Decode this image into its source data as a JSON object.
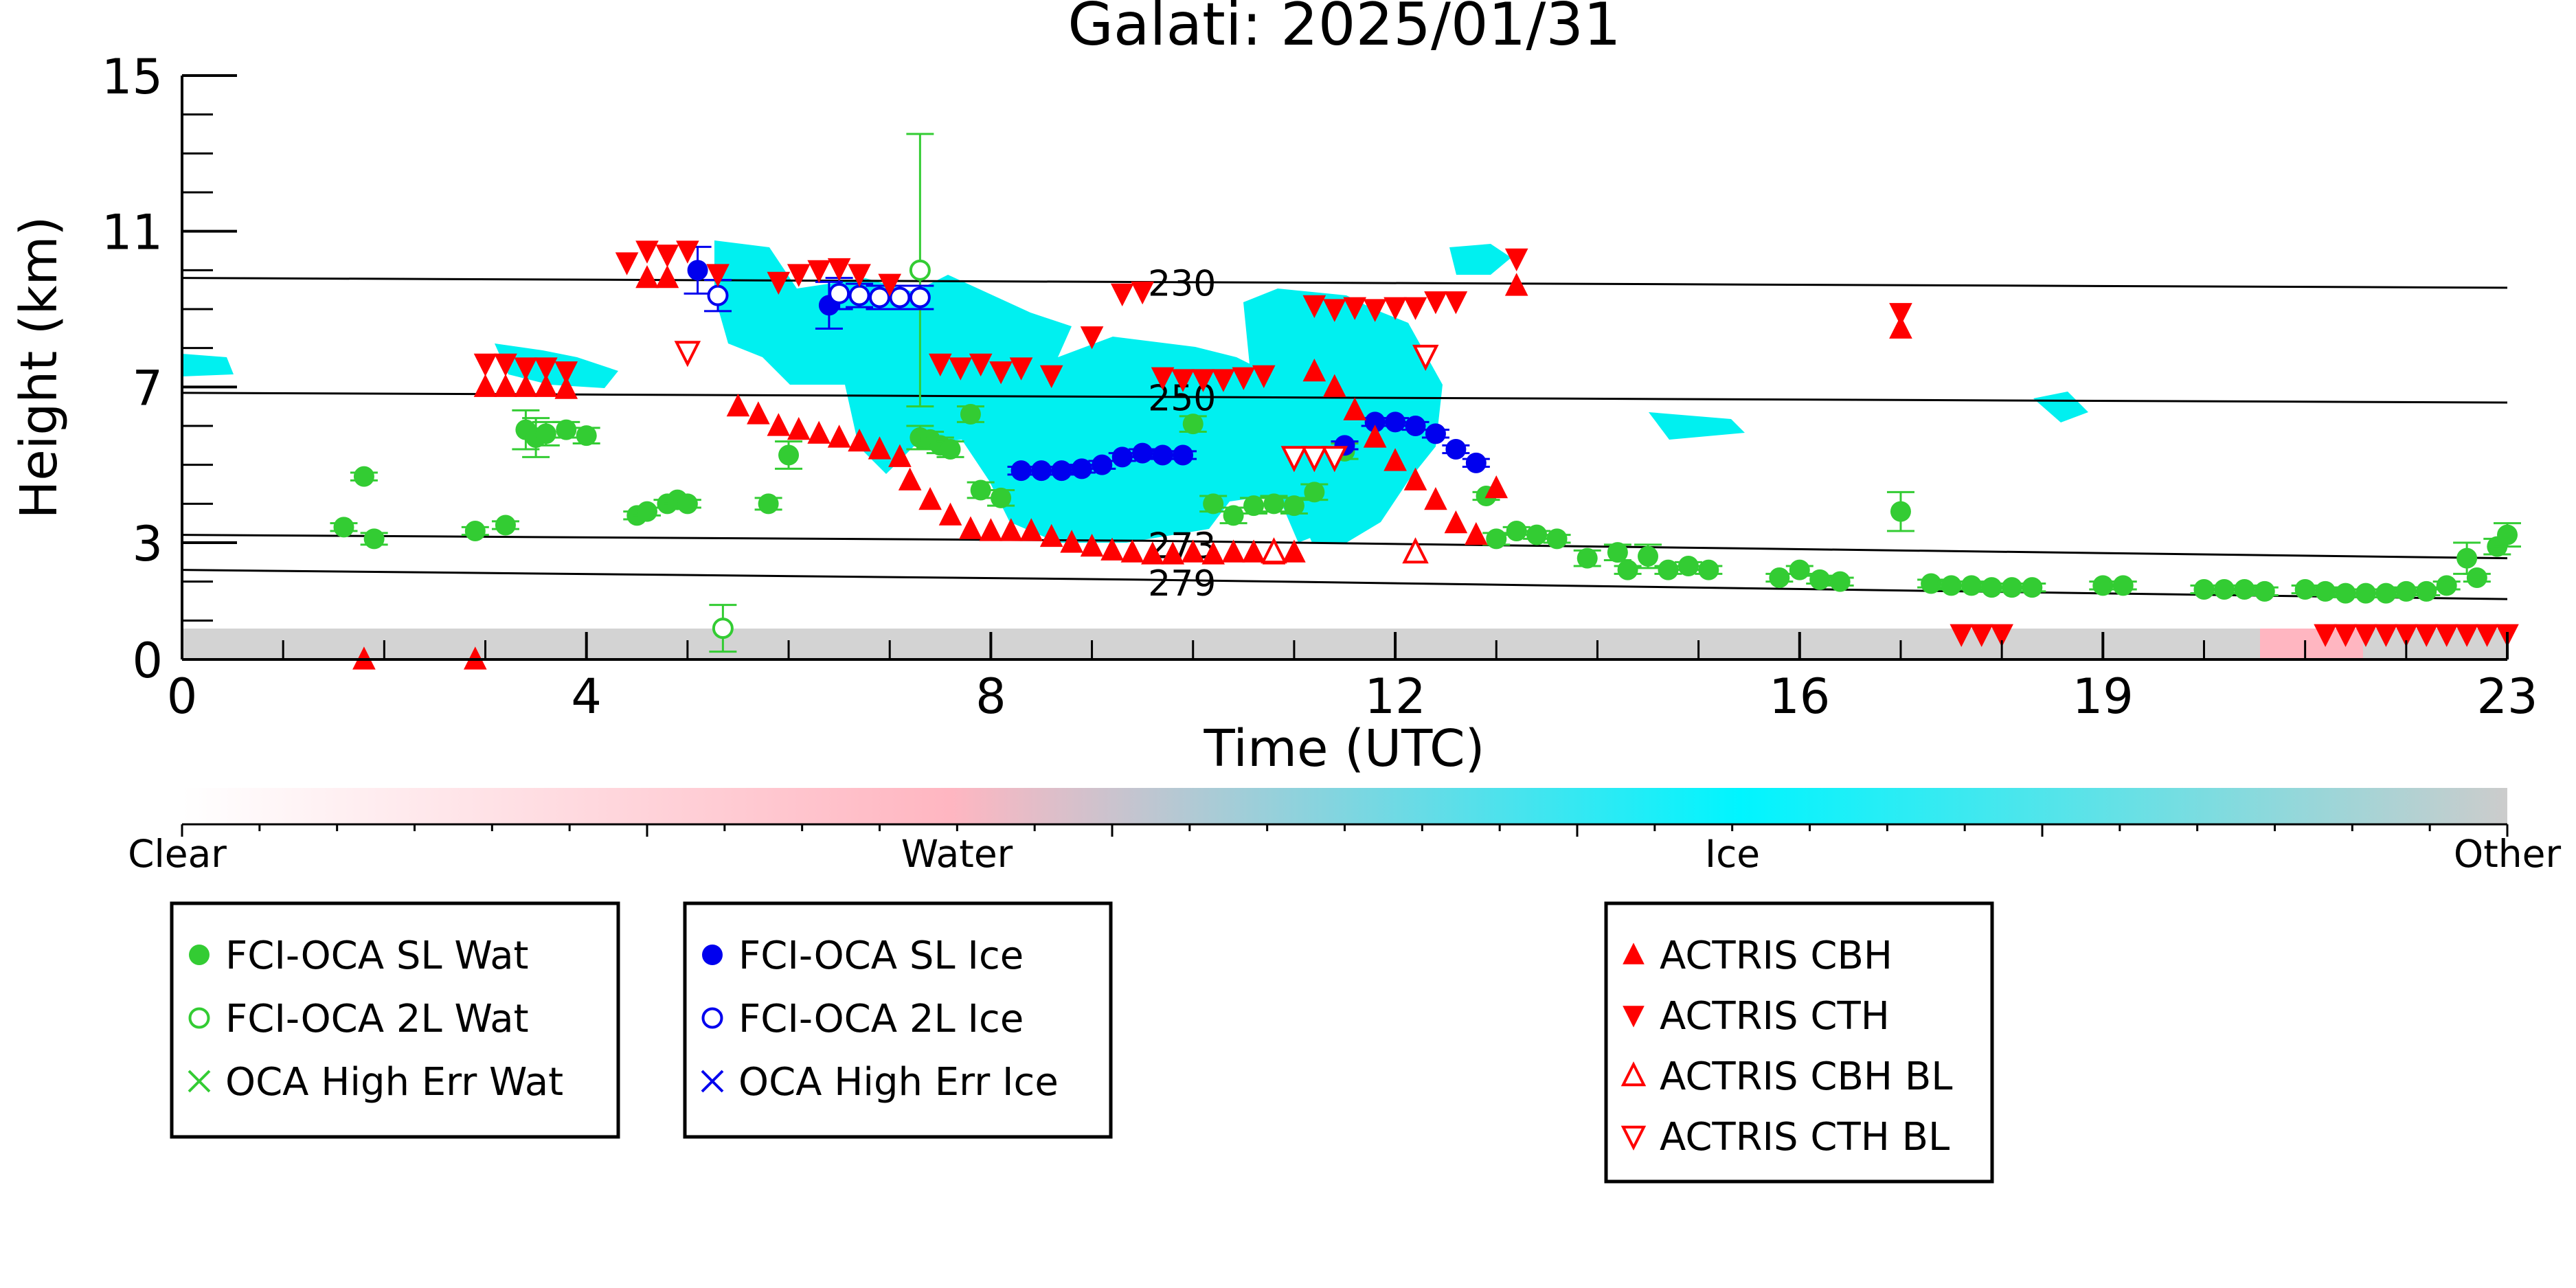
{
  "chart_data": {
    "type": "scatter",
    "title": "Galati: 2025/01/31",
    "xlabel": "Time (UTC)",
    "ylabel": "Height (km)",
    "xlim": [
      0,
      23
    ],
    "ylim": [
      0,
      15
    ],
    "xticks": [
      0,
      4,
      8,
      12,
      16,
      19,
      23
    ],
    "yticks": [
      0,
      3,
      7,
      11,
      15
    ],
    "grid": false,
    "colorbar": {
      "labels": [
        "Clear",
        "Water",
        "Ice",
        "Other"
      ],
      "colors": [
        "#ffffff",
        "#ffb6c1",
        "#00ffff",
        "#cccccc"
      ]
    },
    "isotherms": [
      {
        "label": "230",
        "points": [
          [
            0,
            9.8
          ],
          [
            23,
            9.55
          ]
        ]
      },
      {
        "label": "250",
        "points": [
          [
            0,
            6.85
          ],
          [
            23,
            6.6
          ]
        ]
      },
      {
        "label": "273",
        "points": [
          [
            0,
            3.2
          ],
          [
            9.5,
            3.05
          ],
          [
            23,
            2.6
          ]
        ]
      },
      {
        "label": "279",
        "points": [
          [
            0,
            2.3
          ],
          [
            9.5,
            2.05
          ],
          [
            23,
            1.55
          ]
        ]
      }
    ],
    "legends": [
      {
        "position": "left",
        "entries": [
          {
            "label": "FCI-OCA SL Wat",
            "marker": "filled-circle",
            "color": "#33cc33"
          },
          {
            "label": "FCI-OCA 2L Wat",
            "marker": "open-circle",
            "color": "#33cc33"
          },
          {
            "label": "OCA High Err Wat",
            "marker": "x",
            "color": "#33cc33"
          }
        ]
      },
      {
        "position": "center-left",
        "entries": [
          {
            "label": "FCI-OCA SL Ice",
            "marker": "filled-circle",
            "color": "#0000ee"
          },
          {
            "label": "FCI-OCA 2L Ice",
            "marker": "open-circle",
            "color": "#0000ee"
          },
          {
            "label": "OCA High Err Ice",
            "marker": "x",
            "color": "#0000ee"
          }
        ]
      },
      {
        "position": "right",
        "entries": [
          {
            "label": "ACTRIS CBH",
            "marker": "triangle-up",
            "color": "#ff0000"
          },
          {
            "label": "ACTRIS CTH",
            "marker": "triangle-down",
            "color": "#ff0000"
          },
          {
            "label": "ACTRIS CBH BL",
            "marker": "open-triangle-up",
            "color": "#ff0000"
          },
          {
            "label": "ACTRIS CTH BL",
            "marker": "open-triangle-down",
            "color": "#ff0000"
          }
        ]
      }
    ],
    "series": [
      {
        "name": "FCI-OCA SL Wat",
        "marker": "filled-circle",
        "color": "#33cc33",
        "points": [
          [
            1.6,
            3.4,
            0.1
          ],
          [
            1.8,
            4.7,
            0.1
          ],
          [
            1.9,
            3.1,
            0.15
          ],
          [
            2.9,
            3.3,
            0.1
          ],
          [
            3.2,
            3.45,
            0.1
          ],
          [
            3.4,
            5.9,
            0.5
          ],
          [
            3.5,
            5.7,
            0.5
          ],
          [
            3.6,
            5.8,
            0.3
          ],
          [
            3.8,
            5.9,
            0.2
          ],
          [
            4.0,
            5.75,
            0.2
          ],
          [
            4.5,
            3.7,
            0.1
          ],
          [
            4.6,
            3.8,
            0.1
          ],
          [
            4.8,
            4.0,
            0.1
          ],
          [
            4.9,
            4.1,
            0.1
          ],
          [
            5.0,
            4.0,
            0.1
          ],
          [
            5.8,
            4.0,
            0.15
          ],
          [
            6.0,
            5.25,
            0.35
          ],
          [
            7.3,
            5.7,
            0.3
          ],
          [
            7.4,
            5.65,
            0.2
          ],
          [
            7.5,
            5.5,
            0.2
          ],
          [
            7.6,
            5.4,
            0.2
          ],
          [
            7.8,
            6.3,
            0.2
          ],
          [
            7.9,
            4.35,
            0.2
          ],
          [
            8.1,
            4.15,
            0.2
          ],
          [
            10.0,
            6.05,
            0.2
          ],
          [
            10.2,
            4.0,
            0.2
          ],
          [
            10.4,
            3.7,
            0.2
          ],
          [
            10.6,
            3.95,
            0.2
          ],
          [
            10.8,
            4.0,
            0.2
          ],
          [
            11.0,
            3.95,
            0.2
          ],
          [
            11.2,
            4.3,
            0.2
          ],
          [
            11.5,
            5.35,
            0.2
          ],
          [
            12.9,
            4.2,
            0.1
          ],
          [
            13.0,
            3.1,
            0.15
          ],
          [
            13.2,
            3.3,
            0.1
          ],
          [
            13.4,
            3.2,
            0.1
          ],
          [
            13.6,
            3.1,
            0.1
          ],
          [
            13.9,
            2.6,
            0.2
          ],
          [
            14.2,
            2.75,
            0.2
          ],
          [
            14.3,
            2.3,
            0.1
          ],
          [
            14.5,
            2.65,
            0.3
          ],
          [
            14.7,
            2.3,
            0.1
          ],
          [
            14.9,
            2.4,
            0.1
          ],
          [
            15.1,
            2.3,
            0.1
          ],
          [
            15.8,
            2.1,
            0.1
          ],
          [
            16.0,
            2.3,
            0.1
          ],
          [
            16.2,
            2.05,
            0.1
          ],
          [
            16.4,
            2.0,
            0.1
          ],
          [
            17.3,
            1.95,
            0.1
          ],
          [
            17.5,
            1.9,
            0.1
          ],
          [
            17.7,
            1.9,
            0.1
          ],
          [
            17.9,
            1.85,
            0.1
          ],
          [
            18.1,
            1.85,
            0.1
          ],
          [
            18.3,
            1.85,
            0.1
          ],
          [
            19.0,
            1.9,
            0.1
          ],
          [
            19.2,
            1.9,
            0.1
          ],
          [
            20.0,
            1.8,
            0.1
          ],
          [
            20.2,
            1.8,
            0.1
          ],
          [
            20.4,
            1.8,
            0.1
          ],
          [
            20.6,
            1.75,
            0.1
          ],
          [
            21.0,
            1.8,
            0.1
          ],
          [
            21.2,
            1.75,
            0.1
          ],
          [
            21.4,
            1.7,
            0.1
          ],
          [
            21.6,
            1.7,
            0.1
          ],
          [
            21.8,
            1.7,
            0.1
          ],
          [
            22.0,
            1.75,
            0.1
          ],
          [
            22.2,
            1.75,
            0.1
          ],
          [
            22.4,
            1.9,
            0.1
          ],
          [
            22.6,
            2.6,
            0.4
          ],
          [
            22.7,
            2.1,
            0.1
          ],
          [
            22.9,
            2.9,
            0.2
          ],
          [
            23.0,
            3.2,
            0.3
          ],
          [
            17.0,
            3.8,
            0.5
          ]
        ]
      },
      {
        "name": "FCI-OCA 2L Wat",
        "marker": "open-circle",
        "color": "#33cc33",
        "points": [
          [
            5.35,
            0.8,
            0.6
          ],
          [
            7.3,
            10.0,
            3.5
          ]
        ]
      },
      {
        "name": "FCI-OCA SL Ice",
        "marker": "filled-circle",
        "color": "#0000ee",
        "points": [
          [
            5.1,
            10.0,
            0.6
          ],
          [
            6.4,
            9.1,
            0.6
          ],
          [
            8.3,
            4.85,
            0.1
          ],
          [
            8.5,
            4.85,
            0.1
          ],
          [
            8.7,
            4.85,
            0.1
          ],
          [
            8.9,
            4.9,
            0.1
          ],
          [
            9.1,
            5.0,
            0.1
          ],
          [
            9.3,
            5.2,
            0.1
          ],
          [
            9.5,
            5.3,
            0.1
          ],
          [
            9.7,
            5.25,
            0.1
          ],
          [
            9.9,
            5.25,
            0.1
          ],
          [
            11.5,
            5.5,
            0.1
          ],
          [
            11.8,
            6.1,
            0.1
          ],
          [
            12.0,
            6.1,
            0.1
          ],
          [
            12.2,
            6.0,
            0.1
          ],
          [
            12.4,
            5.8,
            0.1
          ],
          [
            12.6,
            5.4,
            0.1
          ],
          [
            12.8,
            5.05,
            0.1
          ]
        ]
      },
      {
        "name": "FCI-OCA 2L Ice",
        "marker": "open-circle",
        "color": "#0000ee",
        "points": [
          [
            5.3,
            9.35,
            0.4
          ],
          [
            6.5,
            9.4,
            0.4
          ],
          [
            6.7,
            9.35,
            0.3
          ],
          [
            6.9,
            9.3,
            0.3
          ],
          [
            7.1,
            9.3,
            0.3
          ],
          [
            7.3,
            9.3,
            0.3
          ]
        ]
      },
      {
        "name": "ACTRIS CBH",
        "marker": "triangle-up",
        "color": "#ff0000",
        "points": [
          [
            3.0,
            7.0
          ],
          [
            3.2,
            7.0
          ],
          [
            3.4,
            7.0
          ],
          [
            3.6,
            7.0
          ],
          [
            3.8,
            6.95
          ],
          [
            4.6,
            9.8
          ],
          [
            4.8,
            9.8
          ],
          [
            5.5,
            6.5
          ],
          [
            5.7,
            6.3
          ],
          [
            5.9,
            6.0
          ],
          [
            6.1,
            5.9
          ],
          [
            6.3,
            5.8
          ],
          [
            6.5,
            5.7
          ],
          [
            6.7,
            5.6
          ],
          [
            6.9,
            5.4
          ],
          [
            7.1,
            5.2
          ],
          [
            7.2,
            4.6
          ],
          [
            7.4,
            4.1
          ],
          [
            7.6,
            3.7
          ],
          [
            7.8,
            3.35
          ],
          [
            8.0,
            3.3
          ],
          [
            8.2,
            3.3
          ],
          [
            8.4,
            3.3
          ],
          [
            8.6,
            3.15
          ],
          [
            8.8,
            3.0
          ],
          [
            9.0,
            2.9
          ],
          [
            9.2,
            2.8
          ],
          [
            9.4,
            2.75
          ],
          [
            9.6,
            2.7
          ],
          [
            9.8,
            2.7
          ],
          [
            10.0,
            2.75
          ],
          [
            10.2,
            2.7
          ],
          [
            10.4,
            2.75
          ],
          [
            10.6,
            2.75
          ],
          [
            10.8,
            2.7
          ],
          [
            11.0,
            2.75
          ],
          [
            11.2,
            7.4
          ],
          [
            11.4,
            7.0
          ],
          [
            11.6,
            6.4
          ],
          [
            11.8,
            5.7
          ],
          [
            12.0,
            5.1
          ],
          [
            12.2,
            4.6
          ],
          [
            12.4,
            4.1
          ],
          [
            12.6,
            3.5
          ],
          [
            12.8,
            3.2
          ],
          [
            13.0,
            4.4
          ],
          [
            13.2,
            9.6
          ],
          [
            17.0,
            8.5
          ],
          [
            1.8,
            0.0
          ],
          [
            2.9,
            0.0
          ]
        ]
      },
      {
        "name": "ACTRIS CTH",
        "marker": "triangle-down",
        "color": "#ff0000",
        "points": [
          [
            3.0,
            7.6
          ],
          [
            3.2,
            7.6
          ],
          [
            3.4,
            7.5
          ],
          [
            3.6,
            7.5
          ],
          [
            3.8,
            7.4
          ],
          [
            4.4,
            10.2
          ],
          [
            4.6,
            10.5
          ],
          [
            4.8,
            10.4
          ],
          [
            5.0,
            10.5
          ],
          [
            5.3,
            9.9
          ],
          [
            5.9,
            9.7
          ],
          [
            6.1,
            9.9
          ],
          [
            6.3,
            10.0
          ],
          [
            6.5,
            10.05
          ],
          [
            6.7,
            9.9
          ],
          [
            7.0,
            9.65
          ],
          [
            7.5,
            7.6
          ],
          [
            7.7,
            7.5
          ],
          [
            7.9,
            7.6
          ],
          [
            8.1,
            7.4
          ],
          [
            8.3,
            7.5
          ],
          [
            8.6,
            7.3
          ],
          [
            9.0,
            8.3
          ],
          [
            9.3,
            9.4
          ],
          [
            9.5,
            9.45
          ],
          [
            9.7,
            7.25
          ],
          [
            9.9,
            7.2
          ],
          [
            10.1,
            7.2
          ],
          [
            10.3,
            7.2
          ],
          [
            10.5,
            7.25
          ],
          [
            10.7,
            7.3
          ],
          [
            11.2,
            9.1
          ],
          [
            11.4,
            9.0
          ],
          [
            11.6,
            9.05
          ],
          [
            11.8,
            9.0
          ],
          [
            12.0,
            9.05
          ],
          [
            12.2,
            9.05
          ],
          [
            12.4,
            9.2
          ],
          [
            12.6,
            9.2
          ],
          [
            13.2,
            10.3
          ],
          [
            17.0,
            8.9
          ],
          [
            17.6,
            0.65
          ],
          [
            17.8,
            0.65
          ],
          [
            18.0,
            0.65
          ],
          [
            21.2,
            0.65
          ],
          [
            21.4,
            0.65
          ],
          [
            21.6,
            0.65
          ],
          [
            21.8,
            0.65
          ],
          [
            22.0,
            0.65
          ],
          [
            22.2,
            0.65
          ],
          [
            22.4,
            0.65
          ],
          [
            22.6,
            0.65
          ],
          [
            22.8,
            0.65
          ],
          [
            23.0,
            0.65
          ]
        ]
      },
      {
        "name": "ACTRIS CBH BL",
        "marker": "open-triangle-up",
        "color": "#ff0000",
        "points": [
          [
            10.8,
            2.75
          ],
          [
            12.2,
            2.75
          ]
        ]
      },
      {
        "name": "ACTRIS CTH BL",
        "marker": "open-triangle-down",
        "color": "#ff0000",
        "points": [
          [
            5.0,
            7.9
          ],
          [
            11.0,
            5.2
          ],
          [
            11.2,
            5.2
          ],
          [
            11.4,
            5.2
          ],
          [
            12.3,
            7.8
          ]
        ]
      }
    ]
  }
}
